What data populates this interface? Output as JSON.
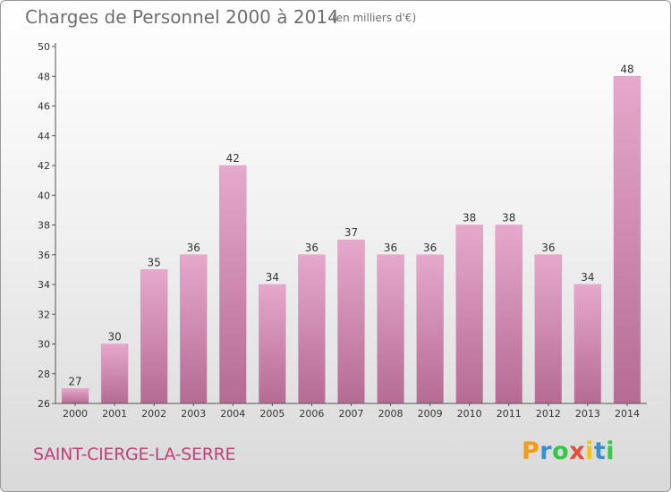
{
  "header": {
    "title": "Charges de Personnel 2000 à 2014",
    "subtitle": "(en milliers d'€)"
  },
  "footer": {
    "commune": "SAINT-CIERGE-LA-SERRE",
    "logo_letters": [
      {
        "char": "P",
        "color": "#f39c12"
      },
      {
        "char": "r",
        "color": "#3a8fd1"
      },
      {
        "char": "o",
        "color": "#2ecc40"
      },
      {
        "char": "x",
        "color": "#e74c3c"
      },
      {
        "char": "i",
        "color": "#f1c40f"
      },
      {
        "char": "t",
        "color": "#3a8fd1"
      },
      {
        "char": "i",
        "color": "#2ecc40"
      }
    ]
  },
  "colors": {
    "bar_light": "#e6a8cc",
    "bar_dark": "#b56b93",
    "axis": "#555555",
    "text": "#333333",
    "title": "#6e6e6e",
    "commune": "#c0407a"
  },
  "chart_data": {
    "type": "bar",
    "categories": [
      "2000",
      "2001",
      "2002",
      "2003",
      "2004",
      "2005",
      "2006",
      "2007",
      "2008",
      "2009",
      "2010",
      "2011",
      "2012",
      "2013",
      "2014"
    ],
    "values": [
      27,
      30,
      35,
      36,
      42,
      34,
      36,
      37,
      36,
      36,
      38,
      38,
      36,
      34,
      48
    ],
    "ylim": [
      26,
      50
    ],
    "yticks": [
      26,
      28,
      30,
      32,
      34,
      36,
      38,
      40,
      42,
      44,
      46,
      48,
      50
    ],
    "grid": false,
    "data_labels": true
  }
}
